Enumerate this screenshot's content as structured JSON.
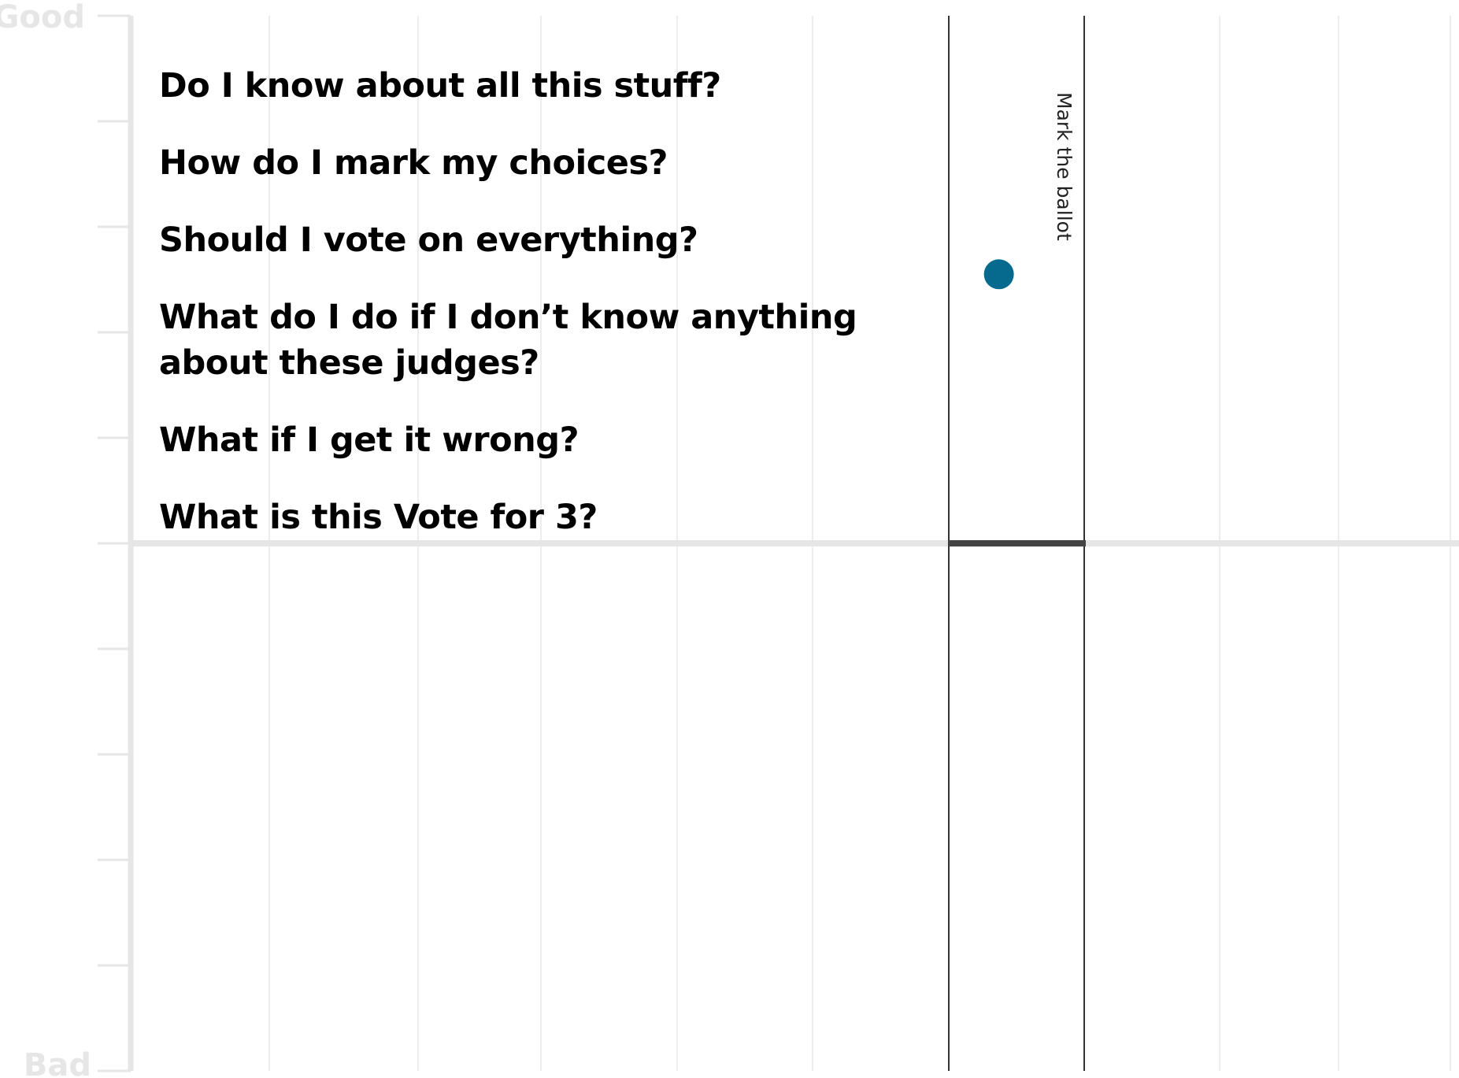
{
  "chart_data": {
    "type": "scatter",
    "y_axis": {
      "top_label": "Good",
      "bottom_label": "Bad",
      "range": [
        -1,
        1
      ],
      "minor_ticks": 10
    },
    "x_axis": {
      "minor_gridlines": 10
    },
    "stages": [
      {
        "label": "Mark the ballot",
        "column": 7
      }
    ],
    "points": [
      {
        "column": 7,
        "y": 0.51,
        "color": "#056a8e"
      }
    ],
    "baseline_y": 0,
    "grid": true
  },
  "questions": [
    "Do I know about all this stuff?",
    "How do I mark my choices?",
    "Should I vote on everything?",
    "What do I do if I don’t know anything about these judges?",
    "What if I get it wrong?",
    "What is this Vote for 3?"
  ],
  "colors": {
    "axis": "#e6e6e6",
    "grid": "#ededed",
    "stage_line": "#333333",
    "baseline_highlight": "#444444",
    "point": "#056a8e"
  }
}
